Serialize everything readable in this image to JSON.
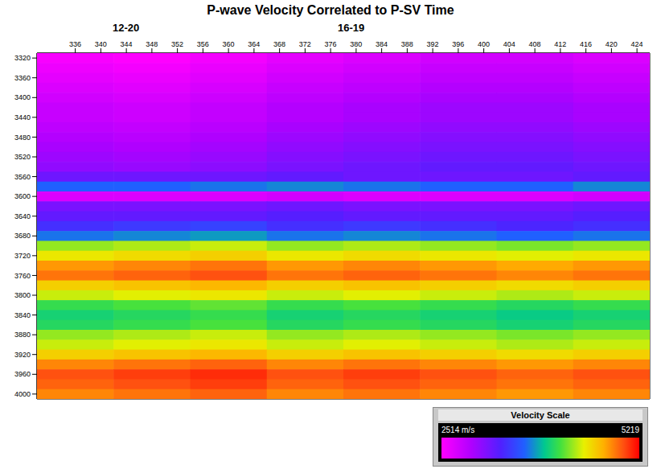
{
  "chart_data": {
    "type": "heatmap",
    "title": "P-wave Velocity Correlated to P-SV Time",
    "annotations": [
      "12-20",
      "16-19"
    ],
    "x": [
      336,
      348,
      360,
      372,
      384,
      396,
      408,
      420
    ],
    "y": [
      3320,
      3340,
      3360,
      3380,
      3400,
      3420,
      3440,
      3460,
      3480,
      3500,
      3520,
      3540,
      3560,
      3580,
      3600,
      3620,
      3640,
      3660,
      3680,
      3700,
      3720,
      3740,
      3760,
      3780,
      3800,
      3820,
      3840,
      3860,
      3880,
      3900,
      3920,
      3940,
      3960,
      3980,
      4000
    ],
    "cells": [
      [
        2550,
        2520,
        2570,
        2650,
        2700,
        2750,
        2750,
        2700
      ],
      [
        2600,
        2570,
        2620,
        2700,
        2750,
        2800,
        2800,
        2750
      ],
      [
        2650,
        2620,
        2670,
        2750,
        2800,
        2850,
        2850,
        2800
      ],
      [
        2700,
        2670,
        2720,
        2800,
        2850,
        2900,
        2900,
        2850
      ],
      [
        2750,
        2720,
        2770,
        2850,
        2900,
        2950,
        2950,
        2900
      ],
      [
        2800,
        2770,
        2820,
        2900,
        2950,
        3000,
        3000,
        2950
      ],
      [
        2800,
        2770,
        2820,
        2900,
        2950,
        3000,
        3000,
        2950
      ],
      [
        2850,
        2820,
        2870,
        2950,
        3000,
        3050,
        3050,
        3000
      ],
      [
        2900,
        2870,
        2920,
        3000,
        3050,
        3100,
        3100,
        3050
      ],
      [
        2950,
        2920,
        2970,
        3050,
        3100,
        3150,
        3150,
        3100
      ],
      [
        3000,
        2970,
        3020,
        3100,
        3150,
        3200,
        3200,
        3150
      ],
      [
        3050,
        3020,
        3070,
        3150,
        3200,
        3250,
        3250,
        3200
      ],
      [
        3200,
        3200,
        3200,
        3250,
        3200,
        3200,
        3200,
        3250
      ],
      [
        3650,
        3650,
        3700,
        3750,
        3700,
        3650,
        3650,
        3750
      ],
      [
        2700,
        2700,
        2700,
        2750,
        2700,
        2700,
        2700,
        2750
      ],
      [
        3150,
        3150,
        3150,
        3200,
        3150,
        3150,
        3150,
        3200
      ],
      [
        3250,
        3250,
        3250,
        3300,
        3250,
        3250,
        3250,
        3300
      ],
      [
        3400,
        3450,
        3500,
        3400,
        3450,
        3400,
        3350,
        3400
      ],
      [
        3700,
        3750,
        3800,
        3700,
        3750,
        3700,
        3650,
        3700
      ],
      [
        4300,
        4350,
        4400,
        4300,
        4350,
        4300,
        4250,
        4300
      ],
      [
        4500,
        4550,
        4600,
        4500,
        4550,
        4500,
        4450,
        4500
      ],
      [
        4800,
        4850,
        4900,
        4800,
        4850,
        4800,
        4750,
        4800
      ],
      [
        4900,
        4950,
        5000,
        4900,
        4950,
        4900,
        4850,
        4900
      ],
      [
        4600,
        4650,
        4700,
        4600,
        4650,
        4600,
        4550,
        4600
      ],
      [
        4400,
        4450,
        4500,
        4400,
        4450,
        4400,
        4350,
        4400
      ],
      [
        4100,
        4150,
        4200,
        4100,
        4150,
        4100,
        4050,
        4100
      ],
      [
        4000,
        4050,
        4100,
        4000,
        4050,
        4000,
        3950,
        4000
      ],
      [
        4050,
        4100,
        4150,
        4050,
        4100,
        4050,
        4000,
        4050
      ],
      [
        4300,
        4350,
        4400,
        4300,
        4350,
        4300,
        4250,
        4300
      ],
      [
        4400,
        4450,
        4500,
        4400,
        4450,
        4400,
        4350,
        4400
      ],
      [
        4600,
        4650,
        4700,
        4600,
        4650,
        4600,
        4550,
        4600
      ],
      [
        4850,
        4900,
        4950,
        4850,
        4900,
        4850,
        4800,
        4850
      ],
      [
        5000,
        5050,
        5100,
        5000,
        5050,
        5000,
        4950,
        5000
      ],
      [
        4950,
        5000,
        5050,
        4950,
        5000,
        4950,
        4900,
        4950
      ],
      [
        4850,
        4900,
        4950,
        4850,
        4900,
        4850,
        4800,
        4850
      ]
    ],
    "xlim": [
      330,
      426
    ],
    "xticks": [
      336,
      340,
      344,
      348,
      352,
      356,
      360,
      364,
      368,
      372,
      376,
      380,
      384,
      388,
      392,
      396,
      400,
      404,
      408,
      412,
      416,
      420,
      424
    ],
    "ylim": [
      3310,
      4010
    ],
    "yticks": [
      3320,
      3360,
      3400,
      3440,
      3480,
      3520,
      3560,
      3600,
      3640,
      3680,
      3720,
      3760,
      3800,
      3840,
      3880,
      3920,
      3960,
      4000
    ],
    "colorbar": {
      "title": "Velocity Scale",
      "range": [
        2514,
        5219
      ],
      "ticks": [
        {
          "value": 2514,
          "label": "2514 m/s"
        },
        5219
      ]
    }
  }
}
